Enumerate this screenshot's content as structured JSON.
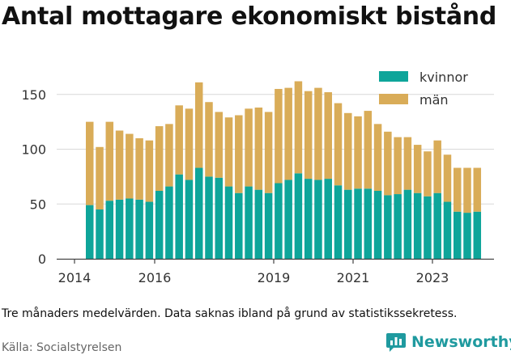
{
  "title": "Antal mottagare ekonomiskt bistånd",
  "note": "Tre månaders medelvärden. Data saknas ibland på grund av statistikssekretess.",
  "source": "Källa: Socialstyrelsen",
  "brand": {
    "name": "Newsworthy",
    "icon": "newsworthy-logo-icon"
  },
  "colors": {
    "kvinnor": "#0ea59a",
    "man": "#d9ac58",
    "grid": "#d8d8d8",
    "text": "#333333"
  },
  "chart_data": {
    "type": "bar",
    "stacked": true,
    "title": "Antal mottagare ekonomiskt bistånd",
    "ylim": [
      0,
      175
    ],
    "yticks": [
      0,
      50,
      100,
      150
    ],
    "ytick_labels": [
      "0",
      "50",
      "100",
      "150"
    ],
    "xticks": [
      2014,
      2016,
      2019,
      2021,
      2023
    ],
    "xtick_labels": [
      "2014",
      "2016",
      "2019",
      "2021",
      "2023"
    ],
    "grid": true,
    "legend": {
      "position": "top-right",
      "entries": [
        "kvinnor",
        "män"
      ]
    },
    "x": [
      "2014-06",
      "2014-09",
      "2014-12",
      "2015-03",
      "2015-06",
      "2015-09",
      "2015-12",
      "2016-03",
      "2016-06",
      "2016-09",
      "2016-12",
      "2017-03",
      "2017-06",
      "2017-09",
      "2017-12",
      "2018-03",
      "2018-06",
      "2018-09",
      "2018-12",
      "2019-03",
      "2019-06",
      "2019-09",
      "2019-12",
      "2020-03",
      "2020-06",
      "2020-09",
      "2020-12",
      "2021-03",
      "2021-06",
      "2021-09",
      "2021-12",
      "2022-03",
      "2022-06",
      "2022-09",
      "2022-12",
      "2023-03",
      "2023-06",
      "2023-09",
      "2023-12",
      "2024-03"
    ],
    "series": [
      {
        "name": "kvinnor",
        "values": [
          49,
          45,
          53,
          54,
          55,
          54,
          52,
          62,
          66,
          77,
          72,
          83,
          75,
          74,
          66,
          60,
          66,
          63,
          60,
          69,
          72,
          78,
          73,
          72,
          73,
          67,
          63,
          64,
          64,
          62,
          58,
          59,
          63,
          60,
          57,
          60,
          52,
          43,
          42,
          43
        ]
      },
      {
        "name": "män",
        "values": [
          76,
          57,
          72,
          63,
          59,
          56,
          56,
          59,
          57,
          63,
          65,
          78,
          68,
          60,
          63,
          71,
          71,
          75,
          74,
          86,
          84,
          84,
          80,
          84,
          79,
          75,
          70,
          66,
          71,
          61,
          58,
          52,
          48,
          44,
          41,
          48,
          43,
          40,
          41,
          40
        ]
      }
    ]
  }
}
